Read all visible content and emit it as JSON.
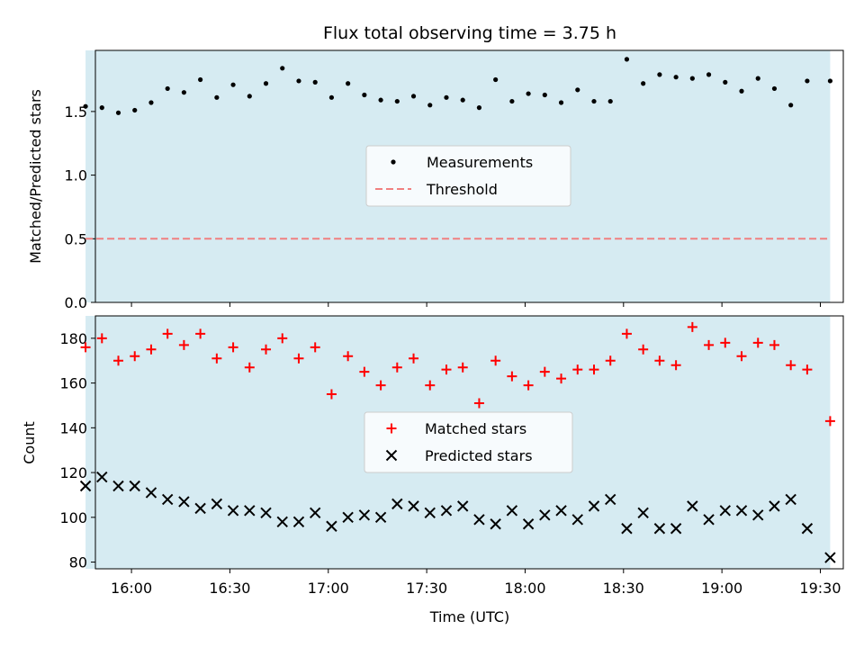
{
  "chart_data": {
    "type": "scatter",
    "title": "Flux total observing time = 3.75 h",
    "xlabel": "Time (UTC)",
    "x_ticks": [
      "16:00",
      "16:30",
      "17:00",
      "17:30",
      "18:00",
      "18:30",
      "19:00",
      "19:30"
    ],
    "x_range": [
      "15:49",
      "19:37"
    ],
    "shaded_interval": [
      "15:46",
      "19:33"
    ],
    "shade_color": "#add8e6",
    "times": [
      "15:46",
      "15:51",
      "15:56",
      "16:01",
      "16:06",
      "16:11",
      "16:16",
      "16:21",
      "16:26",
      "16:31",
      "16:36",
      "16:41",
      "16:46",
      "16:51",
      "16:56",
      "17:01",
      "17:06",
      "17:11",
      "17:16",
      "17:21",
      "17:26",
      "17:31",
      "17:36",
      "17:41",
      "17:46",
      "17:51",
      "17:56",
      "18:01",
      "18:06",
      "18:11",
      "18:16",
      "18:21",
      "18:26",
      "18:31",
      "18:36",
      "18:41",
      "18:46",
      "18:51",
      "18:56",
      "19:01",
      "19:06",
      "19:11",
      "19:16",
      "19:21",
      "19:26",
      "19:31",
      "19:33"
    ],
    "panels": [
      {
        "ylabel": "Matched/Predicted stars",
        "ylim": [
          0,
          1.98
        ],
        "y_ticks": [
          "0.0",
          "0.5",
          "1.0",
          "1.5"
        ],
        "y_tick_values": [
          0,
          0.5,
          1.0,
          1.5
        ],
        "legend_position": "center",
        "series": [
          {
            "name": "Measurements",
            "marker": "dot",
            "color": "#000000",
            "values": [
              1.54,
              1.53,
              1.49,
              1.51,
              1.57,
              1.68,
              1.65,
              1.75,
              1.61,
              1.71,
              1.62,
              1.72,
              1.84,
              1.74,
              1.73,
              1.61,
              1.72,
              1.63,
              1.59,
              1.58,
              1.62,
              1.55,
              1.61,
              1.59,
              1.53,
              1.75,
              1.58,
              1.64,
              1.63,
              1.57,
              1.67,
              1.58,
              1.58,
              1.91,
              1.72,
              1.79,
              1.77,
              1.76,
              1.79,
              1.73,
              1.66,
              1.76,
              1.68,
              1.55,
              1.74,
              null,
              1.74
            ]
          },
          {
            "name": "Threshold",
            "marker": "dashed-line",
            "color": "#f08080",
            "value": 0.5
          }
        ]
      },
      {
        "ylabel": "Count",
        "ylim": [
          77,
          190
        ],
        "y_ticks": [
          "80",
          "100",
          "120",
          "140",
          "160",
          "180"
        ],
        "y_tick_values": [
          80,
          100,
          120,
          140,
          160,
          180
        ],
        "legend_position": "center",
        "series": [
          {
            "name": "Matched stars",
            "marker": "plus",
            "color": "#ff0000",
            "values": [
              176,
              180,
              170,
              172,
              175,
              182,
              177,
              182,
              171,
              176,
              167,
              175,
              180,
              171,
              176,
              155,
              172,
              165,
              159,
              167,
              171,
              159,
              166,
              167,
              151,
              170,
              163,
              159,
              165,
              162,
              166,
              166,
              170,
              182,
              175,
              170,
              168,
              185,
              177,
              178,
              172,
              178,
              177,
              168,
              166,
              null,
              143
            ]
          },
          {
            "name": "Predicted stars",
            "marker": "x",
            "color": "#000000",
            "values": [
              114,
              118,
              114,
              114,
              111,
              108,
              107,
              104,
              106,
              103,
              103,
              102,
              98,
              98,
              102,
              96,
              100,
              101,
              100,
              106,
              105,
              102,
              103,
              105,
              99,
              97,
              103,
              97,
              101,
              103,
              99,
              105,
              108,
              95,
              102,
              95,
              95,
              105,
              99,
              103,
              103,
              101,
              105,
              108,
              95,
              null,
              82
            ]
          }
        ]
      }
    ]
  }
}
